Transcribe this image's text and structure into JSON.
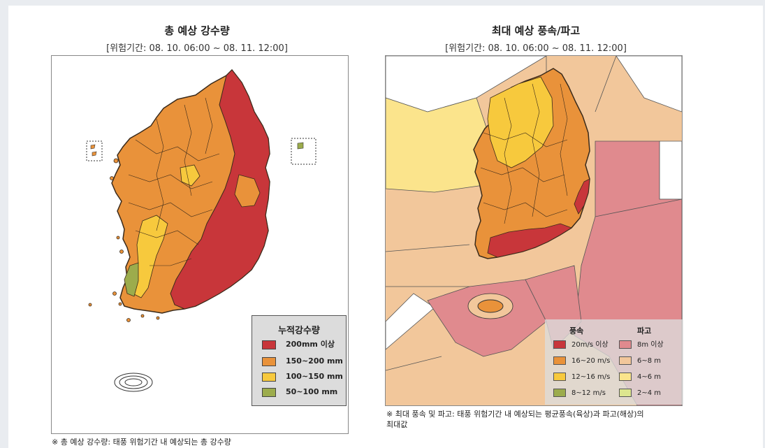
{
  "left_panel": {
    "title": "총 예상 강수량",
    "period": "[위험기간: 08. 10. 06:00 ~ 08. 11. 12:00]",
    "legend": {
      "title": "누적강수량",
      "items": [
        {
          "label": "200mm 이상",
          "color": "#c8363a"
        },
        {
          "label": "150~200 mm",
          "color": "#e9923a"
        },
        {
          "label": "100~150 mm",
          "color": "#f7c93d"
        },
        {
          "label": "50~100 mm",
          "color": "#9cac4c"
        }
      ]
    },
    "note": "※ 총 예상 강수량: 태풍 위험기간 내 예상되는 총 강수량"
  },
  "right_panel": {
    "title": "최대 예상 풍속/파고",
    "period": "[위험기간: 08. 10. 06:00 ~ 08. 11. 12:00]",
    "legend": {
      "wind_header": "풍속",
      "wave_header": "파고",
      "wind_items": [
        {
          "label": "20m/s 이상",
          "color": "#c8363a"
        },
        {
          "label": "16~20 m/s",
          "color": "#e9923a"
        },
        {
          "label": "12~16 m/s",
          "color": "#f7c93d"
        },
        {
          "label": "8~12 m/s",
          "color": "#9cac4c"
        }
      ],
      "wave_items": [
        {
          "label": "8m 이상",
          "color": "#e08a8e"
        },
        {
          "label": "6~8 m",
          "color": "#f2c79b"
        },
        {
          "label": "4~6 m",
          "color": "#fbe48c"
        },
        {
          "label": "2~4 m",
          "color": "#dde68f"
        }
      ]
    },
    "note_line1": "※ 최대 풍속 및 파고: 태풍 위험기간 내 예상되는 평균풍속(육상)과 파고(해상)의",
    "note_line2": "최대값"
  }
}
